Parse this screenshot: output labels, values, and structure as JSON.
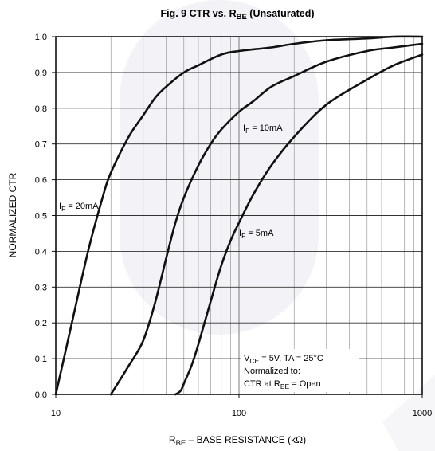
{
  "chart_data": {
    "type": "line",
    "title": {
      "main": "Fig. 9  CTR vs. R",
      "sub": "BE",
      "tail": " (Unsaturated)"
    },
    "xlabel": {
      "main": "R",
      "sub": "BE",
      "tail": " – BASE RESISTANCE (kΩ)"
    },
    "ylabel": "NORMALIZED CTR",
    "x_scale": "log",
    "xlim": [
      10,
      1000
    ],
    "ylim": [
      0,
      1.0
    ],
    "x_ticks": [
      10,
      100,
      1000
    ],
    "x_tick_labels": [
      "10",
      "100",
      "1000"
    ],
    "y_ticks": [
      0.0,
      0.1,
      0.2,
      0.3,
      0.4,
      0.5,
      0.6,
      0.7,
      0.8,
      0.9,
      1.0
    ],
    "y_tick_labels": [
      "0.0",
      "0.1",
      "0.2",
      "0.3",
      "0.4",
      "0.5",
      "0.6",
      "0.7",
      "0.8",
      "0.9",
      "1.0"
    ],
    "grid": true,
    "series": [
      {
        "label": {
          "main": "I",
          "sub": "F",
          "tail": " = 20mA"
        },
        "x": [
          10,
          12,
          15,
          18,
          20,
          25,
          30,
          35,
          40,
          50,
          60,
          80,
          100,
          150,
          200,
          300,
          500,
          700,
          1000
        ],
        "y": [
          0.0,
          0.18,
          0.4,
          0.55,
          0.62,
          0.72,
          0.78,
          0.83,
          0.86,
          0.9,
          0.92,
          0.95,
          0.96,
          0.97,
          0.98,
          0.99,
          0.995,
          1.0,
          1.0
        ]
      },
      {
        "label": {
          "main": "I",
          "sub": "F",
          "tail": " = 10mA"
        },
        "x": [
          20,
          25,
          30,
          35,
          40,
          45,
          50,
          60,
          70,
          80,
          100,
          120,
          150,
          200,
          300,
          500,
          700,
          1000
        ],
        "y": [
          0.0,
          0.08,
          0.15,
          0.26,
          0.38,
          0.48,
          0.55,
          0.64,
          0.7,
          0.74,
          0.79,
          0.82,
          0.86,
          0.89,
          0.93,
          0.96,
          0.97,
          0.98
        ]
      },
      {
        "label": {
          "main": "I",
          "sub": "F",
          "tail": " = 5mA"
        },
        "x": [
          45,
          48,
          50,
          55,
          60,
          70,
          80,
          90,
          100,
          120,
          150,
          200,
          300,
          500,
          700,
          1000
        ],
        "y": [
          0.0,
          0.01,
          0.03,
          0.08,
          0.14,
          0.26,
          0.36,
          0.43,
          0.48,
          0.56,
          0.64,
          0.72,
          0.81,
          0.88,
          0.92,
          0.95
        ]
      }
    ],
    "note": {
      "line1": {
        "a": "V",
        "sub": "CE",
        "b": " = 5V, TA = 25°C"
      },
      "line2": "Normalized to:",
      "line3": {
        "a": "CTR at R",
        "sub": "BE",
        "b": " = Open"
      }
    }
  }
}
